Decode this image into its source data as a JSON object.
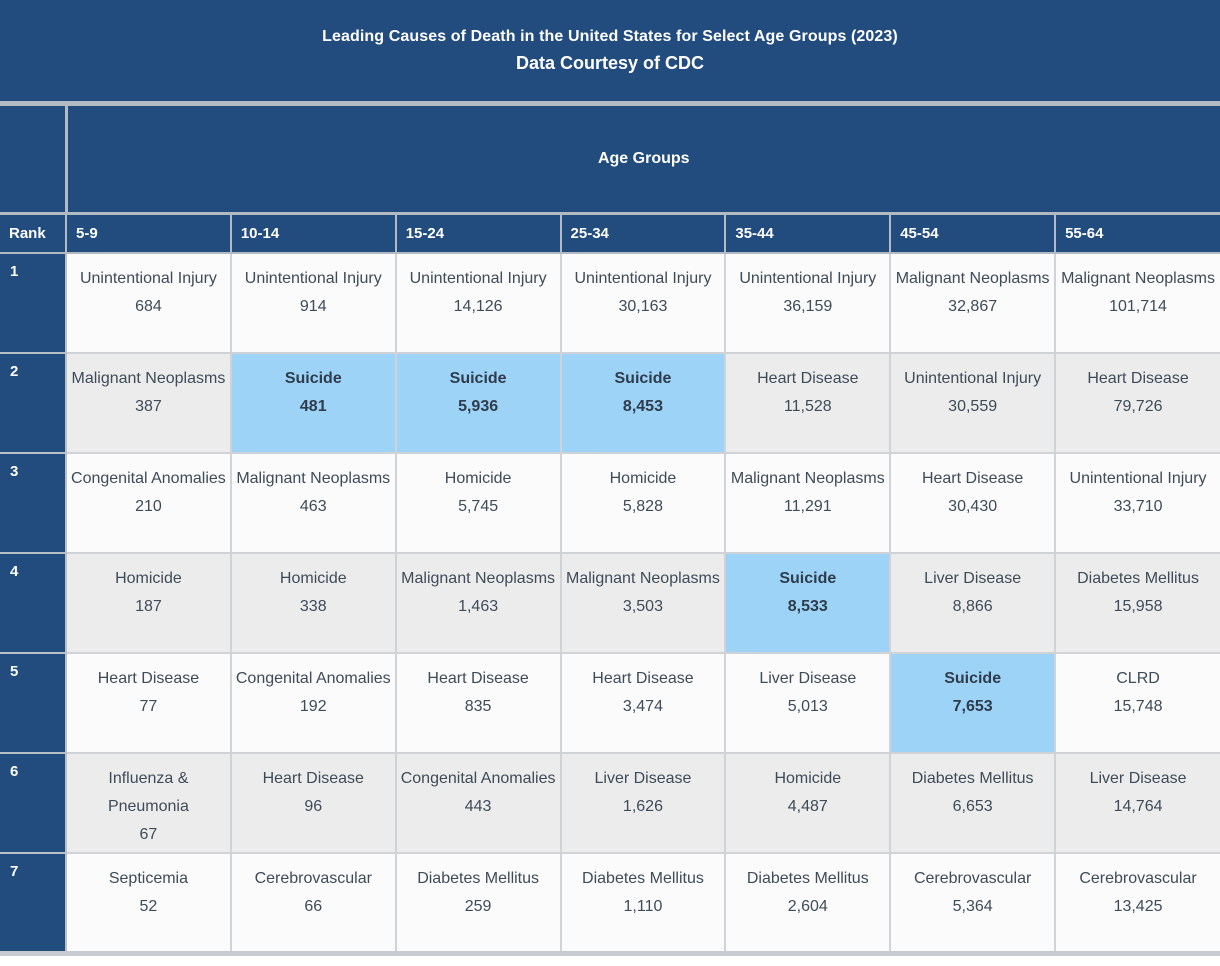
{
  "chart_data": {
    "type": "table",
    "title": "Leading Causes of Death in the United States for Select Age Groups (2023)",
    "subtitle": "Data Courtesy of CDC",
    "column_group_label": "Age Groups",
    "rank_label": "Rank",
    "age_groups": [
      "5-9",
      "10-14",
      "15-24",
      "25-34",
      "35-44",
      "45-54",
      "55-64"
    ],
    "rows": [
      {
        "rank": "1",
        "cells": [
          {
            "cause": "Unintentional Injury",
            "deaths": "684",
            "highlighted": false
          },
          {
            "cause": "Unintentional Injury",
            "deaths": "914",
            "highlighted": false
          },
          {
            "cause": "Unintentional Injury",
            "deaths": "14,126",
            "highlighted": false
          },
          {
            "cause": "Unintentional Injury",
            "deaths": "30,163",
            "highlighted": false
          },
          {
            "cause": "Unintentional Injury",
            "deaths": "36,159",
            "highlighted": false
          },
          {
            "cause": "Malignant Neoplasms",
            "deaths": "32,867",
            "highlighted": false
          },
          {
            "cause": "Malignant Neoplasms",
            "deaths": "101,714",
            "highlighted": false
          }
        ]
      },
      {
        "rank": "2",
        "cells": [
          {
            "cause": "Malignant Neoplasms",
            "deaths": "387",
            "highlighted": false
          },
          {
            "cause": "Suicide",
            "deaths": "481",
            "highlighted": true
          },
          {
            "cause": "Suicide",
            "deaths": "5,936",
            "highlighted": true
          },
          {
            "cause": "Suicide",
            "deaths": "8,453",
            "highlighted": true
          },
          {
            "cause": "Heart Disease",
            "deaths": "11,528",
            "highlighted": false
          },
          {
            "cause": "Unintentional Injury",
            "deaths": "30,559",
            "highlighted": false
          },
          {
            "cause": "Heart Disease",
            "deaths": "79,726",
            "highlighted": false
          }
        ]
      },
      {
        "rank": "3",
        "cells": [
          {
            "cause": "Congenital Anomalies",
            "deaths": "210",
            "highlighted": false
          },
          {
            "cause": "Malignant Neoplasms",
            "deaths": "463",
            "highlighted": false
          },
          {
            "cause": "Homicide",
            "deaths": "5,745",
            "highlighted": false
          },
          {
            "cause": "Homicide",
            "deaths": "5,828",
            "highlighted": false
          },
          {
            "cause": "Malignant Neoplasms",
            "deaths": "11,291",
            "highlighted": false
          },
          {
            "cause": "Heart Disease",
            "deaths": "30,430",
            "highlighted": false
          },
          {
            "cause": "Unintentional Injury",
            "deaths": "33,710",
            "highlighted": false
          }
        ]
      },
      {
        "rank": "4",
        "cells": [
          {
            "cause": "Homicide",
            "deaths": "187",
            "highlighted": false
          },
          {
            "cause": "Homicide",
            "deaths": "338",
            "highlighted": false
          },
          {
            "cause": "Malignant Neoplasms",
            "deaths": "1,463",
            "highlighted": false
          },
          {
            "cause": "Malignant Neoplasms",
            "deaths": "3,503",
            "highlighted": false
          },
          {
            "cause": "Suicide",
            "deaths": "8,533",
            "highlighted": true
          },
          {
            "cause": "Liver Disease",
            "deaths": "8,866",
            "highlighted": false
          },
          {
            "cause": "Diabetes Mellitus",
            "deaths": "15,958",
            "highlighted": false
          }
        ]
      },
      {
        "rank": "5",
        "cells": [
          {
            "cause": "Heart Disease",
            "deaths": "77",
            "highlighted": false
          },
          {
            "cause": "Congenital Anomalies",
            "deaths": "192",
            "highlighted": false
          },
          {
            "cause": "Heart Disease",
            "deaths": "835",
            "highlighted": false
          },
          {
            "cause": "Heart Disease",
            "deaths": "3,474",
            "highlighted": false
          },
          {
            "cause": "Liver Disease",
            "deaths": "5,013",
            "highlighted": false
          },
          {
            "cause": "Suicide",
            "deaths": "7,653",
            "highlighted": true
          },
          {
            "cause": "CLRD",
            "deaths": "15,748",
            "highlighted": false
          }
        ]
      },
      {
        "rank": "6",
        "cells": [
          {
            "cause": "Influenza & Pneumonia",
            "deaths": "67",
            "highlighted": false
          },
          {
            "cause": "Heart Disease",
            "deaths": "96",
            "highlighted": false
          },
          {
            "cause": "Congenital Anomalies",
            "deaths": "443",
            "highlighted": false
          },
          {
            "cause": "Liver Disease",
            "deaths": "1,626",
            "highlighted": false
          },
          {
            "cause": "Homicide",
            "deaths": "4,487",
            "highlighted": false
          },
          {
            "cause": "Diabetes Mellitus",
            "deaths": "6,653",
            "highlighted": false
          },
          {
            "cause": "Liver Disease",
            "deaths": "14,764",
            "highlighted": false
          }
        ]
      },
      {
        "rank": "7",
        "cells": [
          {
            "cause": "Septicemia",
            "deaths": "52",
            "highlighted": false
          },
          {
            "cause": "Cerebrovascular",
            "deaths": "66",
            "highlighted": false
          },
          {
            "cause": "Diabetes Mellitus",
            "deaths": "259",
            "highlighted": false
          },
          {
            "cause": "Diabetes Mellitus",
            "deaths": "1,110",
            "highlighted": false
          },
          {
            "cause": "Diabetes Mellitus",
            "deaths": "2,604",
            "highlighted": false
          },
          {
            "cause": "Cerebrovascular",
            "deaths": "5,364",
            "highlighted": false
          },
          {
            "cause": "Cerebrovascular",
            "deaths": "13,425",
            "highlighted": false
          }
        ]
      }
    ],
    "layout_hints": {
      "header_color": "#214C7D",
      "highlight_color": "#9ED3F8",
      "row_alt_color": "#ECECEC",
      "row_base_color": "#FBFBFB",
      "grid": true
    }
  }
}
